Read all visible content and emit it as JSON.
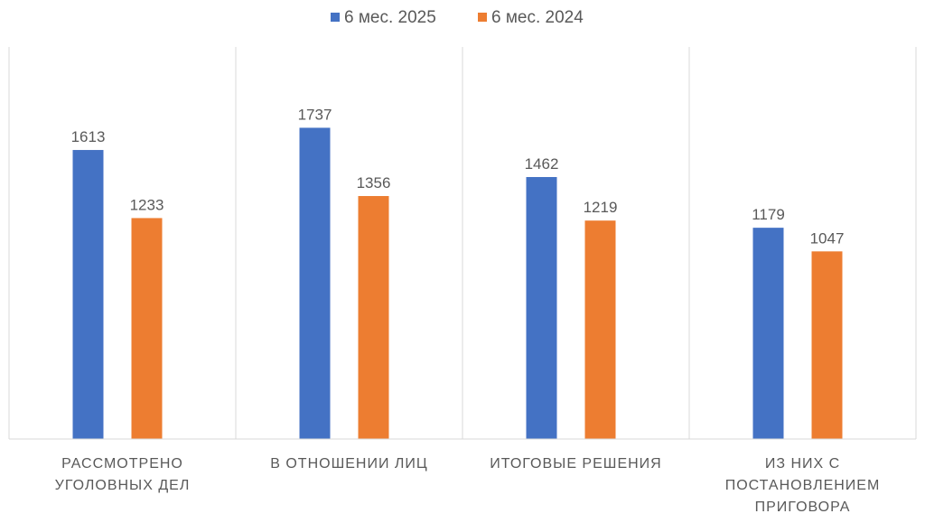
{
  "chart_data": {
    "type": "bar",
    "title": "",
    "xlabel": "",
    "ylabel": "",
    "categories": [
      [
        "РАССМОТРЕНО",
        "УГОЛОВНЫХ ДЕЛ"
      ],
      [
        "В ОТНОШЕНИИ ЛИЦ"
      ],
      [
        "ИТОГОВЫЕ РЕШЕНИЯ"
      ],
      [
        "ИЗ НИХ С",
        "ПОСТАНОВЛЕНИЕМ",
        "ПРИГОВОРА"
      ]
    ],
    "series": [
      {
        "name": "6 мес. 2025",
        "color": "#4472C4",
        "values": [
          1613,
          1737,
          1462,
          1179
        ]
      },
      {
        "name": "6 мес. 2024",
        "color": "#ED7D31",
        "values": [
          1233,
          1356,
          1219,
          1047
        ]
      }
    ],
    "ylim": [
      0,
      2000
    ],
    "grid": false,
    "category_separators": true,
    "legend_position": "top",
    "data_labels": true
  }
}
